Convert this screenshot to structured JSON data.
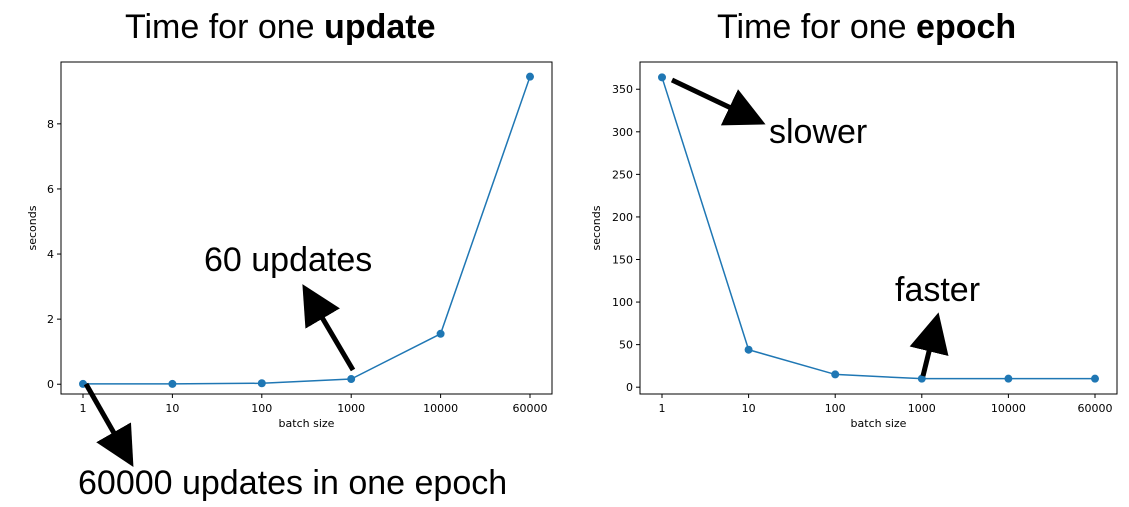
{
  "titles": {
    "left": {
      "prefix": "Time for one ",
      "bold": "update"
    },
    "right": {
      "prefix": "Time for one ",
      "bold": "epoch"
    }
  },
  "annotations": {
    "left_top": "60 updates",
    "left_bottom": "60000 updates in one epoch",
    "right_top": "slower",
    "right_bottom": "faster"
  },
  "colors": {
    "series": "#1f77b4",
    "axis": "#000000",
    "arrow": "#000000"
  },
  "chart_data": [
    {
      "type": "line",
      "x": [
        "1",
        "10",
        "100",
        "1000",
        "10000",
        "60000"
      ],
      "values": [
        0.01,
        0.01,
        0.03,
        0.16,
        1.55,
        9.45
      ],
      "xlabel": "batch size",
      "ylabel": "seconds",
      "ylim": [
        -0.3,
        9.9
      ],
      "yticks": [
        0,
        2,
        4,
        6,
        8
      ],
      "markers": true
    },
    {
      "type": "line",
      "x": [
        "1",
        "10",
        "100",
        "1000",
        "10000",
        "60000"
      ],
      "values": [
        364,
        44,
        15,
        10,
        10,
        10
      ],
      "xlabel": "batch size",
      "ylabel": "seconds",
      "ylim": [
        -8,
        382
      ],
      "yticks": [
        0,
        50,
        100,
        150,
        200,
        250,
        300,
        350
      ],
      "markers": true
    }
  ]
}
